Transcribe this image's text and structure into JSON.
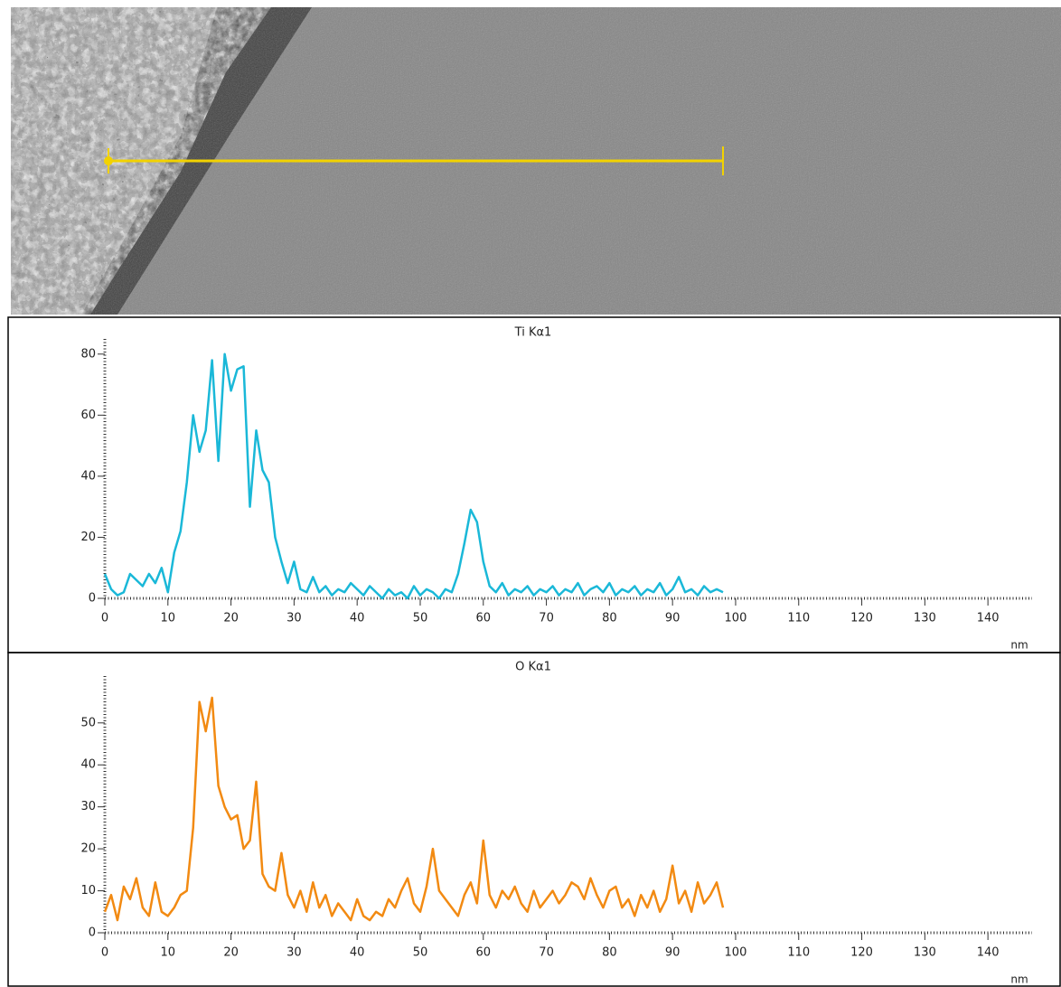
{
  "chart_data": [
    {
      "type": "line",
      "title": "Ti Kα1",
      "x_label": "nm",
      "x": [
        0,
        1,
        2,
        3,
        4,
        5,
        6,
        7,
        8,
        9,
        10,
        11,
        12,
        13,
        14,
        15,
        16,
        17,
        18,
        19,
        20,
        21,
        22,
        23,
        24,
        25,
        26,
        27,
        28,
        29,
        30,
        31,
        32,
        33,
        34,
        35,
        36,
        37,
        38,
        39,
        40,
        41,
        42,
        43,
        44,
        45,
        46,
        47,
        48,
        49,
        50,
        51,
        52,
        53,
        54,
        55,
        56,
        57,
        58,
        59,
        60,
        61,
        62,
        63,
        64,
        65,
        66,
        67,
        68,
        69,
        70,
        71,
        72,
        73,
        74,
        75,
        76,
        77,
        78,
        79,
        80,
        81,
        82,
        83,
        84,
        85,
        86,
        87,
        88,
        89,
        90,
        91,
        92,
        93,
        94,
        95,
        96,
        97,
        98
      ],
      "series": [
        {
          "name": "Ti Kα1",
          "color": "#1ab8d8",
          "values": [
            8,
            3,
            1,
            2,
            8,
            6,
            4,
            8,
            5,
            10,
            2,
            15,
            22,
            38,
            60,
            48,
            55,
            78,
            45,
            80,
            68,
            75,
            76,
            30,
            55,
            42,
            38,
            20,
            12,
            5,
            12,
            3,
            2,
            7,
            2,
            4,
            1,
            3,
            2,
            5,
            3,
            1,
            4,
            2,
            0,
            3,
            1,
            2,
            0,
            4,
            1,
            3,
            2,
            0,
            3,
            2,
            8,
            18,
            29,
            25,
            12,
            4,
            2,
            5,
            1,
            3,
            2,
            4,
            1,
            3,
            2,
            4,
            1,
            3,
            2,
            5,
            1,
            3,
            4,
            2,
            5,
            1,
            3,
            2,
            4,
            1,
            3,
            2,
            5,
            1,
            3,
            7,
            2,
            3,
            1,
            4,
            2,
            3,
            2
          ]
        }
      ],
      "xlim": [
        0,
        147
      ],
      "xticks": [
        0,
        10,
        20,
        30,
        40,
        50,
        60,
        70,
        80,
        90,
        100,
        110,
        120,
        130,
        140
      ],
      "ylim": [
        0,
        82
      ],
      "yticks": [
        0,
        20,
        40,
        60,
        80
      ]
    },
    {
      "type": "line",
      "title": "O Kα1",
      "x_label": "nm",
      "x": [
        0,
        1,
        2,
        3,
        4,
        5,
        6,
        7,
        8,
        9,
        10,
        11,
        12,
        13,
        14,
        15,
        16,
        17,
        18,
        19,
        20,
        21,
        22,
        23,
        24,
        25,
        26,
        27,
        28,
        29,
        30,
        31,
        32,
        33,
        34,
        35,
        36,
        37,
        38,
        39,
        40,
        41,
        42,
        43,
        44,
        45,
        46,
        47,
        48,
        49,
        50,
        51,
        52,
        53,
        54,
        55,
        56,
        57,
        58,
        59,
        60,
        61,
        62,
        63,
        64,
        65,
        66,
        67,
        68,
        69,
        70,
        71,
        72,
        73,
        74,
        75,
        76,
        77,
        78,
        79,
        80,
        81,
        82,
        83,
        84,
        85,
        86,
        87,
        88,
        89,
        90,
        91,
        92,
        93,
        94,
        95,
        96,
        97,
        98
      ],
      "series": [
        {
          "name": "O Kα1",
          "color": "#f28a12",
          "values": [
            5,
            9,
            3,
            11,
            8,
            13,
            6,
            4,
            12,
            5,
            4,
            6,
            9,
            10,
            25,
            55,
            48,
            56,
            35,
            30,
            27,
            28,
            20,
            22,
            36,
            14,
            11,
            10,
            19,
            9,
            6,
            10,
            5,
            12,
            6,
            9,
            4,
            7,
            5,
            3,
            8,
            4,
            3,
            5,
            4,
            8,
            6,
            10,
            13,
            7,
            5,
            11,
            20,
            10,
            8,
            6,
            4,
            9,
            12,
            7,
            22,
            9,
            6,
            10,
            8,
            11,
            7,
            5,
            10,
            6,
            8,
            10,
            7,
            9,
            12,
            11,
            8,
            13,
            9,
            6,
            10,
            11,
            6,
            8,
            4,
            9,
            6,
            10,
            5,
            8,
            16,
            7,
            10,
            5,
            12,
            7,
            9,
            12,
            6
          ]
        }
      ],
      "xlim": [
        0,
        147
      ],
      "xticks": [
        0,
        10,
        20,
        30,
        40,
        50,
        60,
        70,
        80,
        90,
        100,
        110,
        120,
        130,
        140
      ],
      "ylim": [
        0,
        59
      ],
      "yticks": [
        0,
        10,
        20,
        30,
        40,
        50
      ]
    }
  ]
}
